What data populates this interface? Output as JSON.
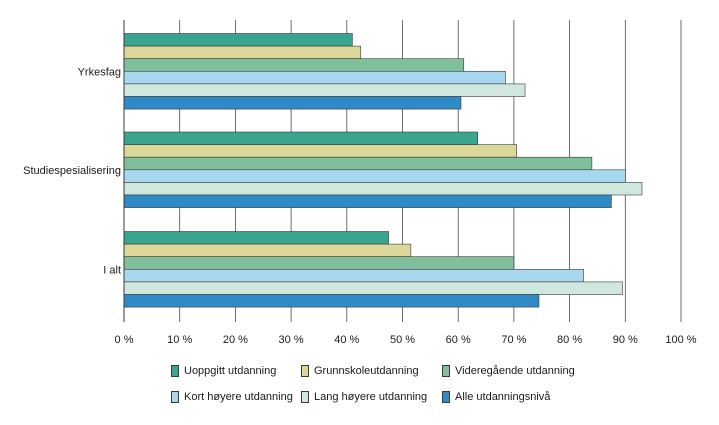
{
  "chart_data": {
    "type": "bar",
    "orientation": "horizontal",
    "title": "",
    "xlabel": "",
    "ylabel": "",
    "xlim": [
      0,
      100
    ],
    "tick_values": [
      0,
      10,
      20,
      30,
      40,
      50,
      60,
      70,
      80,
      90,
      100
    ],
    "tick_labels": [
      "0 %",
      "10 %",
      "20 %",
      "30 %",
      "40 %",
      "50 %",
      "60 %",
      "70 %",
      "80 %",
      "90 %",
      "100 %"
    ],
    "grid": true,
    "legend_position": "bottom",
    "categories": [
      "Yrkesfag",
      "Studiespesialisering",
      "I alt"
    ],
    "series": [
      {
        "name": "Uoppgitt utdanning",
        "color": "#3aa58f",
        "values": [
          41,
          63.5,
          47.5
        ]
      },
      {
        "name": "Grunnskoleutdanning",
        "color": "#dcd79a",
        "values": [
          42.5,
          70.5,
          51.5
        ]
      },
      {
        "name": "Videregående utdanning",
        "color": "#7fbf9b",
        "values": [
          61,
          84,
          70
        ]
      },
      {
        "name": "Kort høyere utdanning",
        "color": "#a8d8f0",
        "values": [
          68.5,
          90,
          82.5
        ]
      },
      {
        "name": "Lang høyere utdanning",
        "color": "#cfe7dc",
        "values": [
          72,
          93,
          89.5
        ]
      },
      {
        "name": "Alle utdanningsnivå",
        "color": "#2e8bc5",
        "values": [
          60.5,
          87.5,
          74.5
        ]
      }
    ]
  }
}
